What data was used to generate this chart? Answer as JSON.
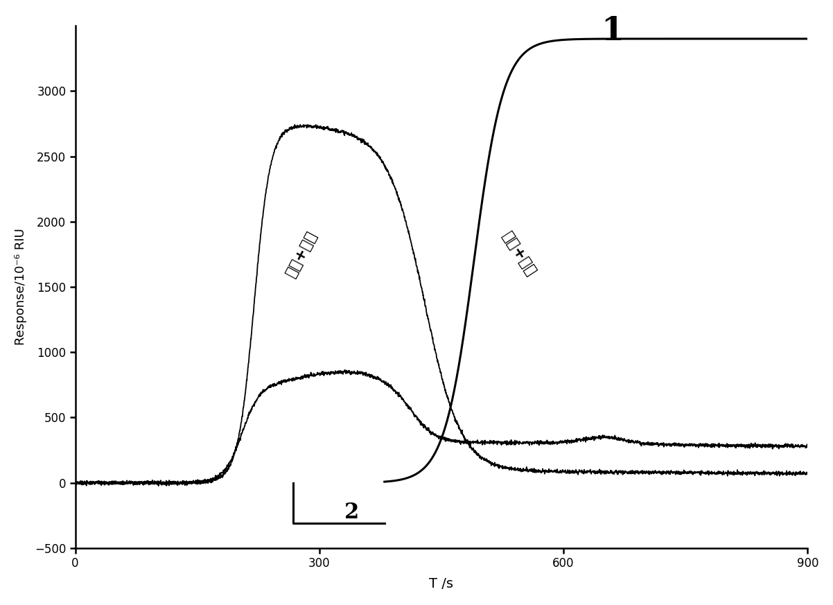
{
  "title": "",
  "xlabel": "T /s",
  "ylabel": "Response/10⁻⁶ RIU",
  "xlim": [
    0,
    900
  ],
  "ylim": [
    -500,
    3500
  ],
  "yticks": [
    -500,
    0,
    500,
    1000,
    1500,
    2000,
    2500,
    3000
  ],
  "xticks": [
    0,
    300,
    600,
    900
  ],
  "xticklabels": [
    "0",
    "300",
    "600",
    "900"
  ],
  "background_color": "#ffffff",
  "label1": "1",
  "label2": "2",
  "line_color": "#000000"
}
